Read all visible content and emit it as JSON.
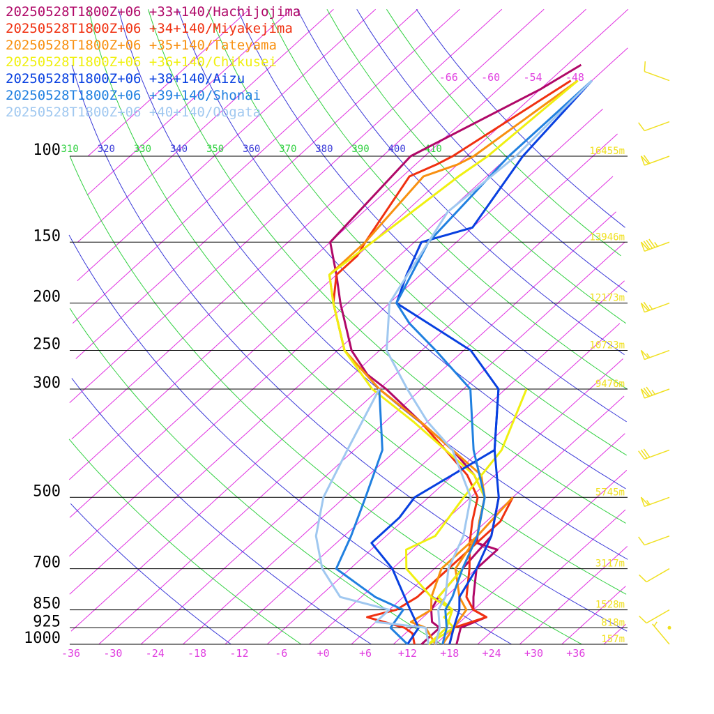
{
  "chart_data": {
    "type": "line",
    "chart_kind": "skew-T log-p sounding",
    "colors": {
      "isotherm": "#e030e0",
      "dry_adiabat_blue": "#3a3ad8",
      "dry_adiabat_green": "#30d040",
      "isobar": "#000000",
      "height_label": "#f0e020",
      "wind_barb": "#f0e020"
    },
    "pressure_levels": [
      100,
      150,
      200,
      250,
      300,
      500,
      700,
      850,
      925,
      1000
    ],
    "pressure_tick_labels": [
      "100",
      "150",
      "200",
      "250",
      "300",
      "500",
      "700",
      "850",
      "925",
      "1000"
    ],
    "temperature_ticks": [
      -36,
      -30,
      -24,
      -18,
      -12,
      -6,
      0,
      6,
      12,
      18,
      24,
      30,
      36
    ],
    "temperature_tick_labels": [
      "-36",
      "-30",
      "-24",
      "-18",
      "-12",
      "-6",
      "+0",
      "+6",
      "+12",
      "+18",
      "+24",
      "+30",
      "+36"
    ],
    "upper_isotherm_labels": [
      {
        "t": -66,
        "text": "-66"
      },
      {
        "t": -60,
        "text": "-60"
      },
      {
        "t": -54,
        "text": "-54"
      },
      {
        "t": -48,
        "text": "-48"
      }
    ],
    "theta_labels": [
      {
        "theta": 310,
        "text": "310"
      },
      {
        "theta": 320,
        "text": "320"
      },
      {
        "theta": 330,
        "text": "330"
      },
      {
        "theta": 340,
        "text": "340"
      },
      {
        "theta": 350,
        "text": "350"
      },
      {
        "theta": 360,
        "text": "360"
      },
      {
        "theta": 370,
        "text": "370"
      },
      {
        "theta": 380,
        "text": "380"
      },
      {
        "theta": 390,
        "text": "390"
      },
      {
        "theta": 400,
        "text": "400"
      },
      {
        "theta": 410,
        "text": "410"
      }
    ],
    "height_labels": [
      {
        "p": 100,
        "text": "16455m"
      },
      {
        "p": 150,
        "text": "13946m"
      },
      {
        "p": 200,
        "text": "12173m"
      },
      {
        "p": 250,
        "text": "10723m"
      },
      {
        "p": 300,
        "text": "9476m"
      },
      {
        "p": 500,
        "text": "5745m"
      },
      {
        "p": 700,
        "text": "3117m"
      },
      {
        "p": 850,
        "text": "1528m"
      },
      {
        "p": 925,
        "text": "818m"
      },
      {
        "p": 1000,
        "text": "157m"
      }
    ],
    "series": [
      {
        "name": "20250528T1800Z+06 +33+140/Hachijojima",
        "color": "#b00868",
        "temperature": [
          [
            1000,
            19
          ],
          [
            925,
            17
          ],
          [
            880,
            19
          ],
          [
            850,
            16
          ],
          [
            800,
            14
          ],
          [
            700,
            10
          ],
          [
            640,
            10
          ],
          [
            620,
            6
          ],
          [
            560,
            3
          ],
          [
            500,
            0
          ],
          [
            450,
            -5
          ],
          [
            400,
            -12
          ],
          [
            350,
            -21
          ],
          [
            300,
            -31
          ],
          [
            280,
            -36
          ],
          [
            250,
            -42
          ],
          [
            200,
            -51
          ],
          [
            175,
            -56
          ],
          [
            150,
            -62
          ],
          [
            100,
            -64
          ],
          [
            73,
            -56
          ],
          [
            65,
            -54
          ]
        ],
        "dewpoint": [
          [
            1000,
            14
          ],
          [
            925,
            14
          ],
          [
            900,
            12
          ],
          [
            850,
            10
          ],
          [
            800,
            9
          ],
          [
            700,
            8
          ],
          [
            600,
            7
          ],
          [
            500,
            2
          ]
        ]
      },
      {
        "name": "20250528T1800Z+06 +34+140/Miyakejima",
        "color": "#f03010",
        "temperature": [
          [
            1000,
            18
          ],
          [
            925,
            16
          ],
          [
            880,
            19
          ],
          [
            850,
            16
          ],
          [
            800,
            13
          ],
          [
            700,
            9
          ],
          [
            620,
            5
          ],
          [
            560,
            2
          ],
          [
            500,
            -1
          ],
          [
            450,
            -6
          ],
          [
            400,
            -13
          ],
          [
            350,
            -21
          ],
          [
            300,
            -32
          ],
          [
            250,
            -43
          ],
          [
            200,
            -52
          ],
          [
            175,
            -56
          ],
          [
            160,
            -56
          ],
          [
            150,
            -57
          ],
          [
            110,
            -61
          ],
          [
            104,
            -59
          ],
          [
            100,
            -58
          ],
          [
            70,
            -53
          ]
        ],
        "dewpoint": [
          [
            1000,
            13
          ],
          [
            950,
            11
          ],
          [
            925,
            9
          ],
          [
            880,
            2
          ],
          [
            850,
            5
          ],
          [
            800,
            6
          ],
          [
            700,
            6
          ],
          [
            600,
            6
          ],
          [
            560,
            6
          ],
          [
            500,
            4
          ]
        ]
      },
      {
        "name": "20250528T1800Z+06 +35+140/Tateyama",
        "color": "#f89010",
        "temperature": [
          [
            1000,
            17
          ],
          [
            925,
            16
          ],
          [
            850,
            15
          ],
          [
            800,
            12
          ],
          [
            700,
            7
          ],
          [
            600,
            5
          ],
          [
            560,
            3
          ],
          [
            500,
            0
          ],
          [
            450,
            -4
          ],
          [
            400,
            -12
          ],
          [
            350,
            -21
          ],
          [
            300,
            -32
          ],
          [
            250,
            -43
          ],
          [
            200,
            -52
          ],
          [
            175,
            -57
          ],
          [
            150,
            -57
          ],
          [
            110,
            -59
          ],
          [
            104,
            -56
          ],
          [
            100,
            -55
          ],
          [
            70,
            -52
          ]
        ],
        "dewpoint": [
          [
            1000,
            16
          ],
          [
            925,
            12
          ],
          [
            900,
            9
          ],
          [
            850,
            10
          ],
          [
            800,
            8
          ],
          [
            700,
            5
          ],
          [
            600,
            5
          ],
          [
            500,
            4
          ]
        ]
      },
      {
        "name": "20250528T1800Z+06 +36+140/Chikusei",
        "color": "#f0f010",
        "temperature": [
          [
            1000,
            15
          ],
          [
            925,
            16
          ],
          [
            880,
            13
          ],
          [
            850,
            13
          ],
          [
            800,
            9
          ],
          [
            700,
            8
          ],
          [
            600,
            5
          ],
          [
            500,
            0
          ],
          [
            450,
            -5
          ],
          [
            400,
            -13
          ],
          [
            350,
            -22
          ],
          [
            300,
            -33
          ],
          [
            250,
            -43
          ],
          [
            200,
            -52
          ],
          [
            175,
            -57
          ],
          [
            150,
            -56
          ],
          [
            110,
            -54
          ],
          [
            100,
            -53
          ],
          [
            70,
            -52
          ]
        ],
        "dewpoint": [
          [
            1000,
            15
          ],
          [
            925,
            15
          ],
          [
            850,
            13
          ],
          [
            800,
            8
          ],
          [
            700,
            0
          ],
          [
            640,
            -3
          ],
          [
            600,
            -1
          ],
          [
            500,
            -3
          ],
          [
            400,
            -5
          ],
          [
            300,
            -11
          ]
        ]
      },
      {
        "name": "20250528T1800Z+06 +38+140/Aizu",
        "color": "#0840e0",
        "temperature": [
          [
            1000,
            18
          ],
          [
            925,
            16
          ],
          [
            850,
            14
          ],
          [
            800,
            12
          ],
          [
            700,
            10
          ],
          [
            600,
            7
          ],
          [
            500,
            2
          ],
          [
            400,
            -6
          ],
          [
            300,
            -15
          ],
          [
            250,
            -25
          ],
          [
            200,
            -43
          ],
          [
            175,
            -46
          ],
          [
            150,
            -49
          ],
          [
            140,
            -44
          ],
          [
            100,
            -48
          ],
          [
            70,
            -50
          ]
        ],
        "dewpoint": [
          [
            1000,
            12
          ],
          [
            925,
            11
          ],
          [
            850,
            7
          ],
          [
            700,
            -2
          ],
          [
            620,
            -9
          ],
          [
            550,
            -9
          ],
          [
            500,
            -10
          ],
          [
            400,
            -6
          ],
          [
            300,
            -15
          ]
        ]
      },
      {
        "name": "20250528T1800Z+06 +39+140/Shonai",
        "color": "#2080e0",
        "temperature": [
          [
            1000,
            17
          ],
          [
            925,
            15
          ],
          [
            850,
            12
          ],
          [
            800,
            11
          ],
          [
            700,
            8
          ],
          [
            600,
            5
          ],
          [
            500,
            0
          ],
          [
            400,
            -9
          ],
          [
            300,
            -19
          ],
          [
            250,
            -30
          ],
          [
            220,
            -38
          ],
          [
            200,
            -43
          ],
          [
            150,
            -48
          ],
          [
            100,
            -50
          ],
          [
            70,
            -50
          ]
        ],
        "dewpoint": [
          [
            1000,
            12
          ],
          [
            925,
            7
          ],
          [
            850,
            6
          ],
          [
            800,
            0
          ],
          [
            700,
            -10
          ],
          [
            600,
            -13
          ],
          [
            500,
            -17
          ],
          [
            400,
            -22
          ],
          [
            300,
            -32
          ]
        ]
      },
      {
        "name": "20250528T1800Z+06 +40+140/Oogata",
        "color": "#a0c8f0",
        "temperature": [
          [
            1000,
            16
          ],
          [
            925,
            14
          ],
          [
            850,
            11
          ],
          [
            800,
            10
          ],
          [
            700,
            6
          ],
          [
            600,
            3
          ],
          [
            500,
            -2
          ],
          [
            400,
            -12
          ],
          [
            350,
            -20
          ],
          [
            300,
            -28
          ],
          [
            250,
            -37
          ],
          [
            200,
            -44
          ],
          [
            150,
            -48
          ],
          [
            130,
            -50
          ],
          [
            100,
            -49
          ],
          [
            70,
            -50
          ]
        ],
        "dewpoint": [
          [
            1000,
            15
          ],
          [
            925,
            12
          ],
          [
            900,
            4
          ],
          [
            850,
            4
          ],
          [
            800,
            -5
          ],
          [
            700,
            -12
          ],
          [
            600,
            -18
          ],
          [
            500,
            -23
          ],
          [
            400,
            -27
          ],
          [
            300,
            -32
          ]
        ]
      }
    ],
    "wind_barbs": [
      {
        "p": 70,
        "dir": 290,
        "spd": 10
      },
      {
        "p": 85,
        "dir": 250,
        "spd": 10
      },
      {
        "p": 100,
        "dir": 250,
        "spd": 60
      },
      {
        "p": 150,
        "dir": 250,
        "spd": 85
      },
      {
        "p": 200,
        "dir": 250,
        "spd": 65
      },
      {
        "p": 250,
        "dir": 250,
        "spd": 55
      },
      {
        "p": 300,
        "dir": 250,
        "spd": 75
      },
      {
        "p": 400,
        "dir": 250,
        "spd": 30
      },
      {
        "p": 500,
        "dir": 250,
        "spd": 55
      },
      {
        "p": 600,
        "dir": 250,
        "spd": 10
      },
      {
        "p": 700,
        "dir": 240,
        "spd": 10
      },
      {
        "p": 850,
        "dir": 240,
        "spd": 10
      },
      {
        "p": 925,
        "dir": 0,
        "spd": 0
      },
      {
        "p": 1000,
        "dir": 320,
        "spd": 5
      }
    ]
  }
}
